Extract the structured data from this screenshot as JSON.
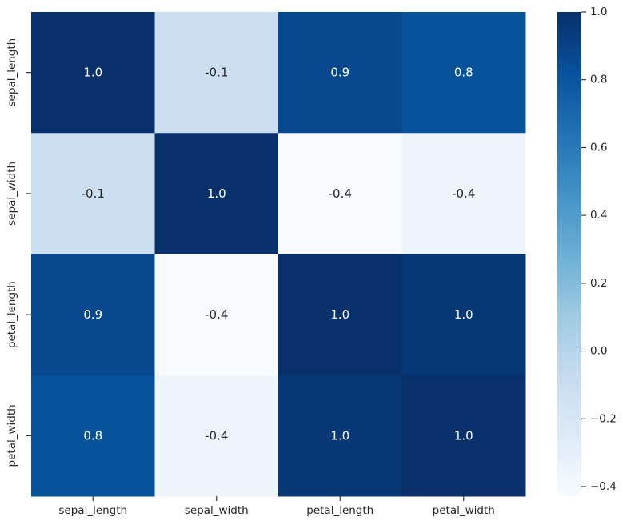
{
  "chart_data": {
    "type": "heatmap",
    "title": "",
    "xlabel": "",
    "ylabel": "",
    "x_categories": [
      "sepal_length",
      "sepal_width",
      "petal_length",
      "petal_width"
    ],
    "y_categories": [
      "sepal_length",
      "sepal_width",
      "petal_length",
      "petal_width"
    ],
    "values": [
      [
        1.0,
        -0.1176,
        0.8718,
        0.8179
      ],
      [
        -0.1176,
        1.0,
        -0.4284,
        -0.3661
      ],
      [
        0.8718,
        -0.4284,
        1.0,
        0.9629
      ],
      [
        0.8179,
        -0.3661,
        0.9629,
        1.0
      ]
    ],
    "annotations": [
      [
        "1.0",
        "-0.1",
        "0.9",
        "0.8"
      ],
      [
        "-0.1",
        "1.0",
        "-0.4",
        "-0.4"
      ],
      [
        "0.9",
        "-0.4",
        "1.0",
        "1.0"
      ],
      [
        "0.8",
        "-0.4",
        "1.0",
        "1.0"
      ]
    ],
    "colormap": "Blues",
    "colorbar": {
      "range": [
        -0.4284,
        1.0
      ],
      "ticks": [
        -0.4,
        -0.2,
        0.0,
        0.2,
        0.4,
        0.6,
        0.8,
        1.0
      ],
      "tick_labels": [
        "−0.4",
        "−0.2",
        "0.0",
        "0.2",
        "0.4",
        "0.6",
        "0.8",
        "1.0"
      ],
      "position": "right"
    },
    "grid": false
  }
}
